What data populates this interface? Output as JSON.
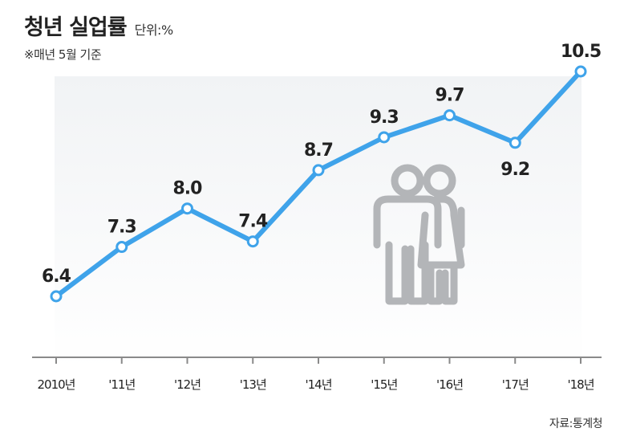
{
  "header": {
    "title": "청년 실업률",
    "unit": "단위:%",
    "note": "※매년 5월 기준"
  },
  "source": "자료:통계청",
  "colors": {
    "line": "#3fa3ea",
    "marker_fill": "#ffffff",
    "plot_background": "#eef0f2",
    "axis": "#8a8a8a",
    "icon": "#b3b5b8"
  },
  "icon": "couple-people-icon",
  "chart_data": {
    "type": "line",
    "title": "청년 실업률",
    "xlabel": "",
    "ylabel": "",
    "categories": [
      "2010년",
      "'11년",
      "'12년",
      "'13년",
      "'14년",
      "'15년",
      "'16년",
      "'17년",
      "'18년"
    ],
    "series": [
      {
        "values": [
          6.4,
          7.3,
          8.0,
          7.4,
          8.7,
          9.3,
          9.7,
          9.2,
          10.5
        ]
      }
    ],
    "data_labels": [
      "6.4",
      "7.3",
      "8.0",
      "7.4",
      "8.7",
      "9.3",
      "9.7",
      "9.2",
      "10.5"
    ],
    "label_placement": [
      "above",
      "above",
      "above",
      "above",
      "above",
      "above",
      "above",
      "below",
      "above"
    ],
    "grid": false,
    "legend": "none"
  }
}
